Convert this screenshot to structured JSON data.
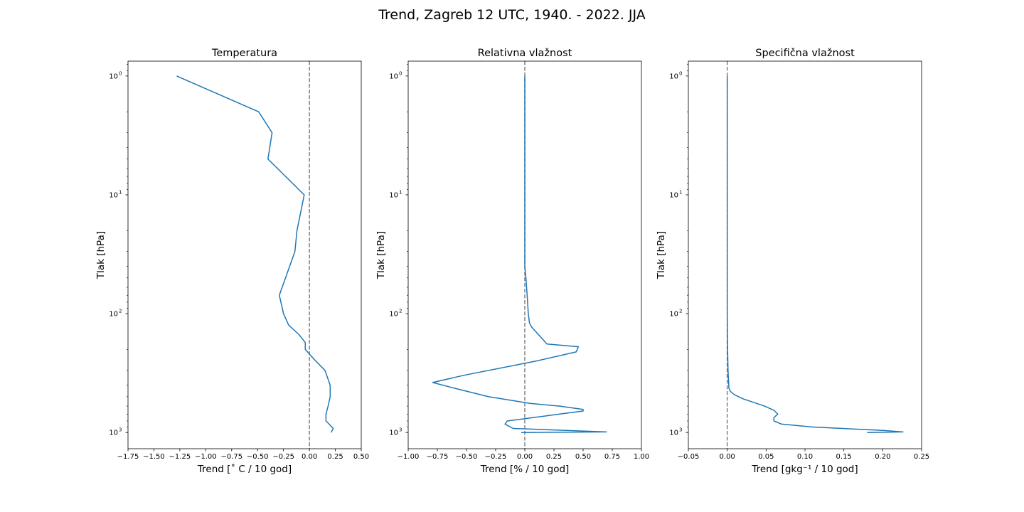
{
  "figure": {
    "title": "Trend, Zagreb 12 UTC, 1940. - 2022. JJA"
  },
  "colors": {
    "line": "#1f77b4",
    "zero_line": "#808080",
    "axes": "#000000"
  },
  "chart_data": [
    {
      "type": "line",
      "title": "Temperatura",
      "xlabel": "Trend [˚ C / 10 god]",
      "ylabel": "Tlak [hPa]",
      "xlim": [
        -1.75,
        0.5
      ],
      "x_ticks": [
        -1.75,
        -1.5,
        -1.25,
        -1.0,
        -0.75,
        -0.5,
        -0.25,
        0.0,
        0.25,
        0.5
      ],
      "x_tick_labels": [
        "−1.75",
        "−1.50",
        "−1.25",
        "−1.00",
        "−0.75",
        "−0.50",
        "−0.25",
        "0.00",
        "0.25",
        "0.50"
      ],
      "y_scale": "log",
      "y_inverted": true,
      "ylim": [
        1370,
        0.75
      ],
      "y_ticks": [
        1,
        10,
        100,
        1000
      ],
      "y_tick_exponents": [
        "0",
        "1",
        "2",
        "3"
      ],
      "zero_line": true,
      "series": [
        {
          "x": [
            -1.28,
            -0.49,
            -0.36,
            -0.4,
            -0.23,
            -0.05,
            -0.12,
            -0.14,
            -0.29,
            -0.25,
            -0.2,
            -0.1,
            -0.04,
            -0.04,
            0.06,
            0.15,
            0.2,
            0.2,
            0.18,
            0.16,
            0.16,
            0.19,
            0.23,
            0.21
          ],
          "y": [
            1.0,
            2.0,
            3.0,
            5.0,
            7.0,
            10.0,
            20.0,
            30.0,
            70.0,
            100.0,
            125.0,
            150.0,
            175.0,
            200.0,
            250.0,
            300.0,
            400.0,
            500.0,
            600.0,
            700.0,
            800.0,
            850.0,
            925.0,
            1000.0
          ]
        }
      ]
    },
    {
      "type": "line",
      "title": "Relativna vlažnost",
      "xlabel": "Trend [% / 10 god]",
      "ylabel": "Tlak [hPa]",
      "xlim": [
        -1.0,
        1.0
      ],
      "x_ticks": [
        -1.0,
        -0.75,
        -0.5,
        -0.25,
        0.0,
        0.25,
        0.5,
        0.75,
        1.0
      ],
      "x_tick_labels": [
        "−1.00",
        "−0.75",
        "−0.50",
        "−0.25",
        "0.00",
        "0.25",
        "0.50",
        "0.75",
        "1.00"
      ],
      "y_scale": "log",
      "y_inverted": true,
      "ylim": [
        1370,
        0.75
      ],
      "y_ticks": [
        1,
        10,
        100,
        1000
      ],
      "y_tick_exponents": [
        "0",
        "1",
        "2",
        "3"
      ],
      "zero_line": true,
      "series": [
        {
          "x": [
            0.0,
            0.0,
            0.0,
            0.0,
            0.0,
            0.0,
            0.0,
            0.01,
            0.02,
            0.03,
            0.04,
            0.06,
            0.19,
            0.46,
            0.44,
            0.1,
            -0.52,
            -0.79,
            -0.58,
            -0.31,
            0.05,
            0.3,
            0.5,
            0.5,
            0.3,
            -0.15,
            -0.17,
            -0.1,
            0.7,
            -0.03
          ],
          "y": [
            1.0,
            2.0,
            5.0,
            10.0,
            20.0,
            30.0,
            40.0,
            50.0,
            70.0,
            100.0,
            120.0,
            130.0,
            180.0,
            190.0,
            210.0,
            250.0,
            330.0,
            380.0,
            430.0,
            500.0,
            570.0,
            600.0,
            640.0,
            660.0,
            700.0,
            800.0,
            850.0,
            925.0,
            990.0,
            1000.0
          ]
        }
      ]
    },
    {
      "type": "line",
      "title": "Specifična vlažnost",
      "xlabel": "Trend [gkg⁻¹ / 10 god]",
      "ylabel": "Tlak [hPa]",
      "xlim": [
        -0.05,
        0.25
      ],
      "x_ticks": [
        -0.05,
        0.0,
        0.05,
        0.1,
        0.15,
        0.2,
        0.25
      ],
      "x_tick_labels": [
        "−0.05",
        "0.00",
        "0.05",
        "0.10",
        "0.15",
        "0.20",
        "0.25"
      ],
      "y_scale": "log",
      "y_inverted": true,
      "ylim": [
        1370,
        0.75
      ],
      "y_ticks": [
        1,
        10,
        100,
        1000
      ],
      "y_tick_exponents": [
        "0",
        "1",
        "2",
        "3"
      ],
      "zero_line": true,
      "series": [
        {
          "x": [
            0.0,
            0.0,
            0.0,
            0.0,
            0.0005,
            0.001,
            0.0015,
            0.002,
            0.002,
            0.004,
            0.009,
            0.02,
            0.048,
            0.06,
            0.065,
            0.06,
            0.06,
            0.07,
            0.11,
            0.2,
            0.226,
            0.18
          ],
          "y": [
            1.0,
            5.0,
            20.0,
            100.0,
            200.0,
            300.0,
            350.0,
            400.0,
            420.0,
            450.0,
            480.0,
            520.0,
            600.0,
            650.0,
            700.0,
            750.0,
            800.0,
            850.0,
            900.0,
            960.0,
            990.0,
            1000.0
          ]
        }
      ]
    }
  ]
}
